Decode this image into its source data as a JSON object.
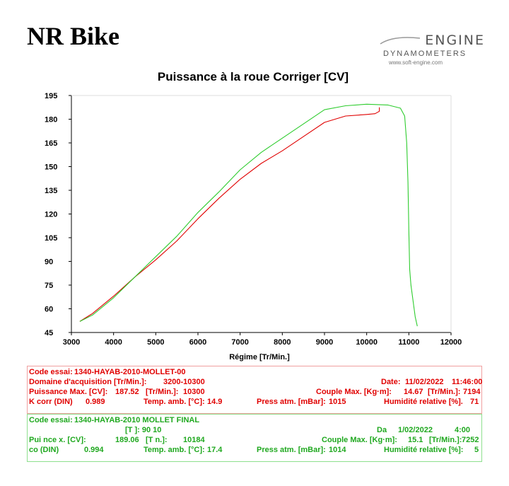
{
  "brand": "NR Bike",
  "logo": {
    "line1": "ENGINE",
    "line2": "DYNAMOMETERS",
    "line3": "www.soft-engine.com"
  },
  "colors": {
    "run1": "#e00000",
    "run2": "#2ecc2e",
    "axis": "#000000",
    "grid": "#dddddd"
  },
  "chart_data": {
    "type": "line",
    "title": "Puissance à la roue Corriger [CV]",
    "xlabel": "Régime [Tr/Min.]",
    "ylabel": "",
    "xlim": [
      3000,
      12000
    ],
    "ylim": [
      45,
      195
    ],
    "xticks": [
      3000,
      4000,
      5000,
      6000,
      7000,
      8000,
      9000,
      10000,
      11000,
      12000
    ],
    "yticks": [
      45,
      60,
      75,
      90,
      105,
      120,
      135,
      150,
      165,
      180,
      195
    ],
    "grid": false,
    "series": [
      {
        "color": "#e00000",
        "x": [
          3200,
          3500,
          4000,
          4500,
          5000,
          5500,
          6000,
          6500,
          7000,
          7500,
          8000,
          8500,
          9000,
          9500,
          10000,
          10200,
          10300,
          10300
        ],
        "y": [
          52,
          57,
          68,
          80,
          91,
          103,
          117,
          130,
          142,
          152,
          160,
          169,
          178,
          182,
          183,
          183.5,
          185,
          187.5
        ]
      },
      {
        "color": "#2ecc2e",
        "x": [
          3200,
          3500,
          4000,
          4500,
          5000,
          5500,
          6000,
          6500,
          7000,
          7500,
          8000,
          8500,
          9000,
          9500,
          10000,
          10500,
          10800,
          10900,
          10950,
          10980,
          11000,
          11020,
          11050,
          11100,
          11150,
          11200
        ],
        "y": [
          52,
          56,
          67,
          80,
          93,
          106,
          121,
          134,
          148,
          159,
          168,
          177,
          186,
          188.5,
          189.5,
          189,
          187,
          182,
          165,
          140,
          110,
          85,
          75,
          65,
          55,
          49
        ]
      }
    ]
  },
  "run1": {
    "code_label": "Code essai:",
    "code_value": "1340-HAYAB-2010-MOLLET-00",
    "domain_label": "Domaine d'acquisition [Tr/Min.]:",
    "domain_value": "3200-10300",
    "date_label": "Date:",
    "date_value": "11/02/2022",
    "time_value": "11:46:00",
    "pmax_label": "Puissance Max. [CV]:",
    "pmax_value": "187.52",
    "pmax_rpm_label": "[Tr/Min.]:",
    "pmax_rpm_value": "10300",
    "cmax_label": "Couple Max. [Kg·m]:",
    "cmax_value": "14.67",
    "cmax_rpm_label": "[Tr/Min.]:",
    "cmax_rpm_value": "7194",
    "kcorr_label": "K corr  (DIN)",
    "kcorr_value": "0.989",
    "temp_label": "Temp. amb. [°C]:",
    "temp_value": "14.9",
    "press_label": "Press atm. [mBar]:",
    "press_value": "1015",
    "hum_label": "Humidité relative [%].",
    "hum_value": "71"
  },
  "run2": {
    "code_label": "Code essai:",
    "code_value": "1340-HAYAB-2010 MOLLET FINAL",
    "domain_fragment": "[T          ]:    90      10",
    "date_label": "Da",
    "date_value": "1/02/2022",
    "time_value": "4:00",
    "pmax_label": "Pui     nce     x. [CV]:",
    "pmax_value": "189.06",
    "pmax_rpm_label": "[T     n.]:",
    "pmax_rpm_value": "10184",
    "cmax_label": "Couple Max. [Kg·m]:",
    "cmax_value": "15.1",
    "cmax_rpm_label": "[Tr/Min.]:",
    "cmax_rpm_value": "7252",
    "kcorr_label": "co     (DIN)",
    "kcorr_value": "0.994",
    "temp_label": "Temp. amb. [°C]:",
    "temp_value": "17.4",
    "press_label": "Press atm. [mBar]:",
    "press_value": "1014",
    "hum_label": "Humidité relative [%]:",
    "hum_value": "5"
  }
}
